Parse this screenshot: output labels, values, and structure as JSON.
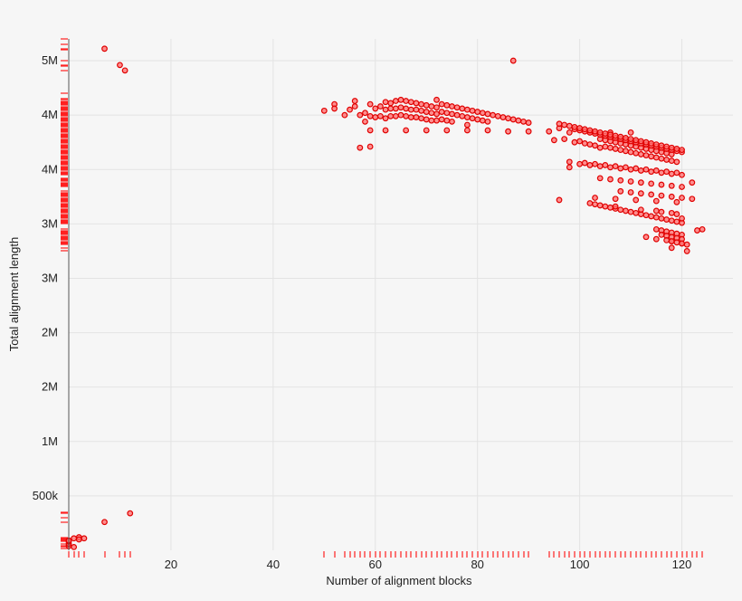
{
  "chart_data": {
    "type": "scatter",
    "xlabel": "Number of alignment blocks",
    "ylabel": "Total alignment length",
    "xlim": [
      0,
      130
    ],
    "ylim": [
      0,
      4700000
    ],
    "x_ticks": [
      {
        "value": 20,
        "label": "20"
      },
      {
        "value": 40,
        "label": "40"
      },
      {
        "value": 60,
        "label": "60"
      },
      {
        "value": 80,
        "label": "80"
      },
      {
        "value": 100,
        "label": "100"
      },
      {
        "value": 120,
        "label": "120"
      }
    ],
    "y_ticks": [
      {
        "value": 500000,
        "label": "500k"
      },
      {
        "value": 1000000,
        "label": "1M"
      },
      {
        "value": 1500000,
        "label": "2M"
      },
      {
        "value": 2000000,
        "label": "2M"
      },
      {
        "value": 2500000,
        "label": "3M"
      },
      {
        "value": 3000000,
        "label": "3M"
      },
      {
        "value": 3500000,
        "label": "4M"
      },
      {
        "value": 4000000,
        "label": "4M"
      },
      {
        "value": 4500000,
        "label": "5M"
      }
    ],
    "grid": true,
    "rug": true,
    "colors": {
      "point_fill": "#ff6b6b",
      "point_stroke": "#e00000",
      "rug": "#ff2020",
      "grid": "#e3e3e3"
    },
    "points": {
      "x": [
        0,
        0,
        0,
        0,
        1,
        1,
        2,
        2,
        3,
        7,
        7,
        10,
        11,
        12,
        50,
        52,
        52,
        54,
        55,
        56,
        56,
        57,
        58,
        58,
        59,
        59,
        60,
        60,
        61,
        61,
        62,
        62,
        62,
        63,
        63,
        63,
        64,
        64,
        64,
        65,
        65,
        65,
        66,
        66,
        66,
        67,
        67,
        67,
        68,
        68,
        68,
        69,
        69,
        69,
        70,
        70,
        70,
        71,
        71,
        71,
        72,
        72,
        72,
        72,
        73,
        73,
        73,
        74,
        74,
        74,
        75,
        75,
        75,
        76,
        76,
        77,
        77,
        78,
        78,
        78,
        79,
        79,
        80,
        80,
        81,
        81,
        82,
        82,
        83,
        84,
        85,
        86,
        87,
        88,
        89,
        90,
        59,
        62,
        66,
        70,
        74,
        78,
        82,
        86,
        90,
        94,
        98,
        102,
        106,
        110,
        57,
        59,
        87,
        95,
        97,
        99,
        100,
        101,
        102,
        103,
        104,
        104,
        105,
        105,
        106,
        106,
        107,
        107,
        108,
        108,
        109,
        109,
        110,
        110,
        111,
        111,
        112,
        112,
        113,
        113,
        114,
        114,
        115,
        115,
        116,
        116,
        117,
        117,
        118,
        118,
        119,
        96,
        99,
        100,
        101,
        102,
        103,
        104,
        105,
        106,
        107,
        108,
        109,
        110,
        111,
        112,
        113,
        114,
        115,
        116,
        117,
        118,
        119,
        120,
        96,
        97,
        98,
        99,
        100,
        101,
        102,
        103,
        104,
        105,
        106,
        107,
        108,
        109,
        110,
        111,
        112,
        113,
        114,
        115,
        116,
        117,
        118,
        119,
        120,
        98,
        100,
        101,
        102,
        103,
        104,
        105,
        106,
        107,
        108,
        109,
        110,
        111,
        112,
        113,
        114,
        115,
        116,
        117,
        118,
        119,
        120,
        104,
        106,
        108,
        110,
        112,
        114,
        116,
        118,
        120,
        108,
        110,
        112,
        114,
        116,
        118,
        120,
        122,
        96,
        102,
        103,
        104,
        105,
        106,
        107,
        108,
        109,
        110,
        111,
        112,
        113,
        114,
        115,
        116,
        117,
        118,
        119,
        120,
        103,
        107,
        111,
        115,
        119,
        98,
        107,
        112,
        115,
        116,
        118,
        119,
        115,
        116,
        117,
        118,
        119,
        120,
        116,
        117,
        118,
        119,
        120,
        117,
        118,
        119,
        120,
        121,
        113,
        115,
        118,
        120,
        120,
        118,
        122,
        121,
        123,
        124
      ],
      "y": [
        40000,
        60000,
        80000,
        90000,
        30000,
        110000,
        120000,
        100000,
        110000,
        260000,
        4610000,
        4460000,
        4410000,
        340000,
        4040000,
        4100000,
        4060000,
        4000000,
        4050000,
        4130000,
        4080000,
        4000000,
        4020000,
        3940000,
        4100000,
        3990000,
        4060000,
        3980000,
        4080000,
        3990000,
        4120000,
        4050000,
        3970000,
        4110000,
        4060000,
        3990000,
        4130000,
        4060000,
        3990000,
        4140000,
        4070000,
        4000000,
        4130000,
        4060000,
        3990000,
        4120000,
        4050000,
        3980000,
        4110000,
        4050000,
        3980000,
        4100000,
        4040000,
        3970000,
        4090000,
        4030000,
        3960000,
        4080000,
        4020000,
        3950000,
        4140000,
        4070000,
        4010000,
        3950000,
        4100000,
        4030000,
        3960000,
        4090000,
        4020000,
        3950000,
        4080000,
        4010000,
        3940000,
        4070000,
        4000000,
        4060000,
        3990000,
        4050000,
        3980000,
        3910000,
        4040000,
        3970000,
        4030000,
        3960000,
        4020000,
        3950000,
        4010000,
        3940000,
        4000000,
        3990000,
        3980000,
        3970000,
        3960000,
        3950000,
        3940000,
        3930000,
        3860000,
        3860000,
        3860000,
        3860000,
        3860000,
        3860000,
        3860000,
        3850000,
        3850000,
        3850000,
        3840000,
        3840000,
        3840000,
        3840000,
        3700000,
        3710000,
        4500000,
        3770000,
        3780000,
        3750000,
        3760000,
        3740000,
        3730000,
        3720000,
        3700000,
        3780000,
        3710000,
        3770000,
        3700000,
        3760000,
        3690000,
        3750000,
        3680000,
        3740000,
        3670000,
        3730000,
        3660000,
        3720000,
        3650000,
        3710000,
        3640000,
        3700000,
        3630000,
        3690000,
        3620000,
        3680000,
        3610000,
        3670000,
        3600000,
        3660000,
        3590000,
        3650000,
        3580000,
        3640000,
        3570000,
        3880000,
        3870000,
        3860000,
        3850000,
        3840000,
        3830000,
        3820000,
        3810000,
        3800000,
        3790000,
        3780000,
        3770000,
        3760000,
        3750000,
        3740000,
        3730000,
        3720000,
        3710000,
        3700000,
        3690000,
        3680000,
        3670000,
        3660000,
        3920000,
        3910000,
        3900000,
        3890000,
        3880000,
        3870000,
        3860000,
        3850000,
        3840000,
        3830000,
        3820000,
        3810000,
        3800000,
        3790000,
        3780000,
        3770000,
        3760000,
        3750000,
        3740000,
        3730000,
        3720000,
        3710000,
        3700000,
        3690000,
        3680000,
        3570000,
        3550000,
        3560000,
        3540000,
        3550000,
        3530000,
        3540000,
        3520000,
        3530000,
        3510000,
        3520000,
        3500000,
        3510000,
        3490000,
        3500000,
        3480000,
        3490000,
        3470000,
        3480000,
        3460000,
        3470000,
        3450000,
        3420000,
        3410000,
        3400000,
        3390000,
        3380000,
        3370000,
        3360000,
        3350000,
        3340000,
        3300000,
        3290000,
        3280000,
        3270000,
        3260000,
        3250000,
        3240000,
        3230000,
        3220000,
        3190000,
        3180000,
        3170000,
        3160000,
        3150000,
        3140000,
        3130000,
        3120000,
        3110000,
        3100000,
        3090000,
        3080000,
        3070000,
        3060000,
        3050000,
        3040000,
        3030000,
        3020000,
        3010000,
        3240000,
        3230000,
        3220000,
        3210000,
        3200000,
        3520000,
        3160000,
        3130000,
        3120000,
        3110000,
        3100000,
        3090000,
        2950000,
        2940000,
        2930000,
        2920000,
        2910000,
        2900000,
        2900000,
        2890000,
        2880000,
        2870000,
        2860000,
        2850000,
        2840000,
        2830000,
        2820000,
        2810000,
        2880000,
        2860000,
        2840000,
        2820000,
        3050000,
        2780000,
        3380000,
        2750000,
        2940000,
        2950000
      ],
      "extra_y_rug": [
        3000000,
        3050000,
        3100000,
        3150000,
        3200000,
        3250000,
        3300000,
        3350000,
        3400000,
        3450000,
        3500000,
        3550000,
        3600000,
        3650000,
        3700000,
        3750000,
        3800000,
        3850000,
        3900000,
        3950000,
        4000000,
        4050000,
        4100000,
        4150000,
        4200000,
        4450000,
        4500000,
        4600000,
        4650000,
        4700000,
        300000,
        350000,
        120000,
        80000,
        60000,
        40000,
        20000
      ]
    }
  }
}
